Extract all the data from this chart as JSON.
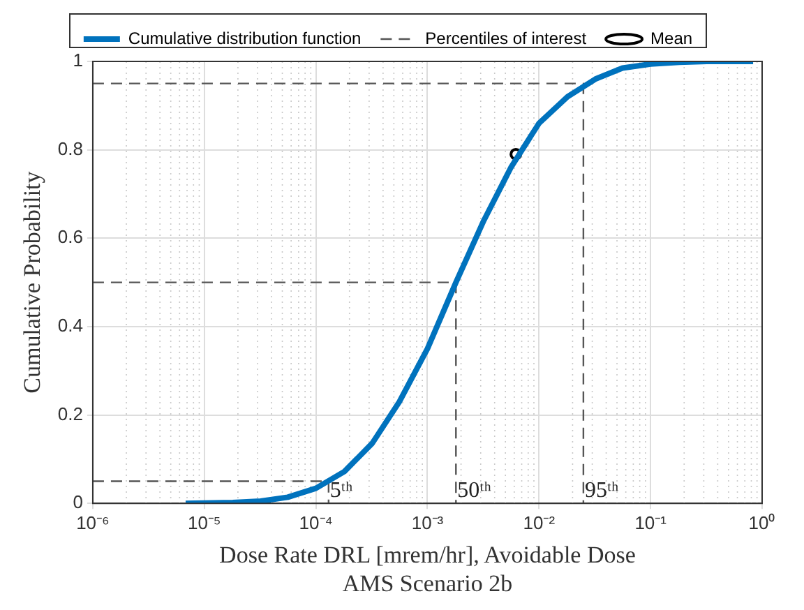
{
  "chart_data": {
    "type": "line",
    "xlabel": "Dose Rate DRL [mrem/hr], Avoidable Dose\nAMS Scenario 2b",
    "ylabel": "Cumulative Probability",
    "log": "x",
    "xlim": [
      1e-06,
      1
    ],
    "xticks": [
      {
        "value": 1e-06,
        "label": "10⁻⁶"
      },
      {
        "value": 1e-05,
        "label": "10⁻⁵"
      },
      {
        "value": 0.0001,
        "label": "10⁻⁴"
      },
      {
        "value": 0.001,
        "label": "10⁻³"
      },
      {
        "value": 0.01,
        "label": "10⁻²"
      },
      {
        "value": 0.1,
        "label": "10⁻¹"
      },
      {
        "value": 1,
        "label": "10⁰"
      }
    ],
    "ylim": [
      0,
      1
    ],
    "yticks": [
      0,
      0.2,
      0.4,
      0.6,
      0.8,
      1
    ],
    "grid": true,
    "legend": "top",
    "series": [
      {
        "name": "Cumulative distribution function",
        "color": "#0072bd",
        "line_style": "solid",
        "marker": "none",
        "x": [
          6.8e-06,
          1.8e-05,
          3.2e-05,
          5.6e-05,
          0.0001,
          0.00018,
          0.00032,
          0.00056,
          0.001,
          0.0018,
          0.0032,
          0.0056,
          0.01,
          0.018,
          0.032,
          0.056,
          0.1,
          0.18,
          0.32,
          0.83
        ],
        "values": [
          0,
          0.002,
          0.005,
          0.014,
          0.034,
          0.072,
          0.136,
          0.23,
          0.35,
          0.5,
          0.64,
          0.76,
          0.86,
          0.92,
          0.96,
          0.985,
          0.994,
          0.998,
          1,
          1
        ]
      },
      {
        "name": "Percentiles of interest",
        "color": "#555555",
        "line_style": "dashed",
        "marker": "none",
        "x": [
          1e-06,
          0.00013,
          0.00013
        ],
        "values": [
          0.05,
          0.05,
          0
        ]
      },
      {
        "color": "#555555",
        "line_style": "dashed",
        "marker": "none",
        "x": [
          1e-06,
          0.0018,
          0.0018
        ],
        "values": [
          0.5,
          0.5,
          0
        ]
      },
      {
        "color": "#555555",
        "line_style": "dashed",
        "marker": "none",
        "x": [
          1e-06,
          0.025,
          0.025
        ],
        "values": [
          0.95,
          0.95,
          0
        ]
      },
      {
        "name": "Mean",
        "type": "scatter",
        "color": "#000000",
        "marker": "circle",
        "x": [
          0.0062
        ],
        "values": [
          0.79
        ]
      }
    ],
    "annotations": [
      {
        "text": "5ᵗʰ",
        "x": 0.00013,
        "y": 0
      },
      {
        "text": "50ᵗʰ",
        "x": 0.0018,
        "y": 0
      },
      {
        "text": "95ᵗʰ",
        "x": 0.025,
        "y": 0
      }
    ]
  }
}
